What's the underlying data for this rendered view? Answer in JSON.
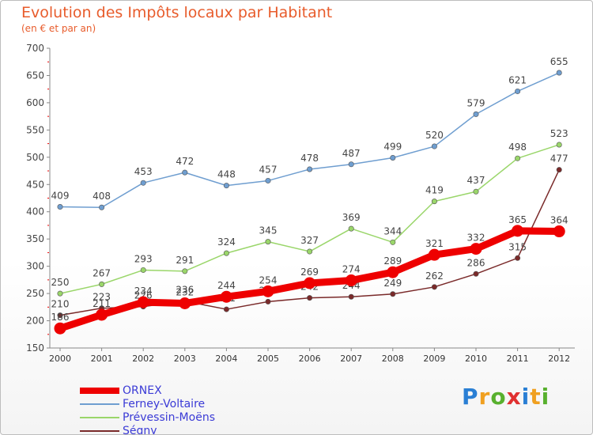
{
  "chart_data": {
    "type": "line",
    "title": "Evolution des Impôts locaux par Habitant",
    "subtitle": "(en € et par an)",
    "x": [
      "2000",
      "2001",
      "2002",
      "2003",
      "2004",
      "2005",
      "2006",
      "2007",
      "2008",
      "2009",
      "2010",
      "2011",
      "2012"
    ],
    "ylim": [
      150,
      700
    ],
    "yticks": [
      150,
      200,
      250,
      300,
      350,
      400,
      450,
      500,
      550,
      600,
      650,
      700
    ],
    "grid": false,
    "legend_position": "bottom-left",
    "series": [
      {
        "name": "ORNEX",
        "color": "#ee0000",
        "values": [
          186,
          211,
          234,
          232,
          244,
          254,
          269,
          274,
          289,
          321,
          332,
          365,
          364
        ]
      },
      {
        "name": "Ferney-Voltaire",
        "color": "#6f9ed0",
        "values": [
          409,
          408,
          453,
          472,
          448,
          457,
          478,
          487,
          499,
          520,
          579,
          621,
          655
        ]
      },
      {
        "name": "Prévessin-Moëns",
        "color": "#9ad66a",
        "values": [
          250,
          267,
          293,
          291,
          324,
          345,
          327,
          369,
          344,
          419,
          437,
          498,
          523
        ]
      },
      {
        "name": "Ségny",
        "color": "#7a2a2a",
        "values": [
          210,
          223,
          226,
          236,
          221,
          235,
          242,
          244,
          249,
          262,
          286,
          315,
          477
        ]
      }
    ]
  },
  "brand": {
    "letters": [
      "P",
      "r",
      "o",
      "x",
      "i",
      "t",
      "i"
    ],
    "colors": [
      "#2a7fd4",
      "#f0a020",
      "#58b02e",
      "#e03030",
      "#2a7fd4",
      "#f0a020",
      "#58b02e"
    ]
  }
}
